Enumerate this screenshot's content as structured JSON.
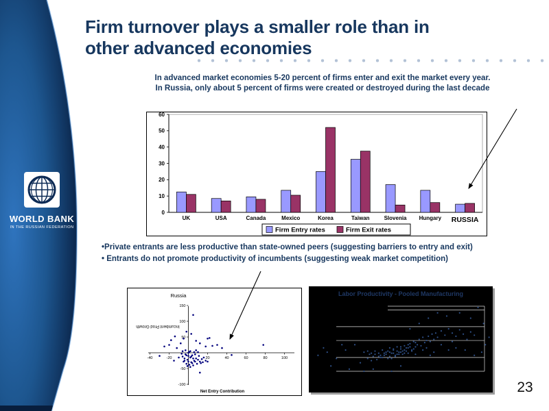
{
  "slide": {
    "page_number": "23"
  },
  "logo": {
    "name": "WORLD BANK",
    "subtitle": "IN THE RUSSIAN FEDERATION"
  },
  "title": {
    "line1": "Firm turnover plays a smaller role than in",
    "line2": "other advanced economies"
  },
  "intro": {
    "line1": "In advanced market economies 5-20 percent of firms enter and exit the market every year.",
    "line2": "In Russia, only about 5 percent of firms were created or destroyed during the last decade"
  },
  "bullets": [
    "•Private entrants are less productive than state-owned peers (suggesting barriers to entry and exit)",
    "• Entrants do not promote productivity of incumbents (suggesting weak market competition)"
  ],
  "colors": {
    "brand_navy": "#17375E",
    "sidebar_light": "#2F74BE",
    "sidebar_dark": "#0C2950",
    "dot": "#B3C2D6"
  },
  "chart_data": [
    {
      "type": "bar",
      "categories": [
        "UK",
        "USA",
        "Canada",
        "Mexico",
        "Korea",
        "Taiwan",
        "Slovenia",
        "Hungary",
        "RUSSIA"
      ],
      "series": [
        {
          "name": "Firm Entry rates",
          "color": "#9999FF",
          "values": [
            12.5,
            8.5,
            9.5,
            13.5,
            25,
            32.5,
            17,
            13.5,
            5
          ]
        },
        {
          "name": "Firm Exit rates",
          "color": "#993366",
          "values": [
            11,
            7,
            8,
            10.5,
            52,
            37.5,
            4.5,
            6,
            5.5
          ]
        }
      ],
      "title": "",
      "xlabel": "",
      "ylabel": "",
      "ylim": [
        0,
        60
      ],
      "yticks": [
        0,
        10,
        20,
        30,
        40,
        50,
        60
      ],
      "grid": false,
      "legend_position": "bottom",
      "annotation_arrow_target": "RUSSIA"
    },
    {
      "type": "scatter",
      "title": "Russia",
      "xlabel": "Net Entry Contribution",
      "ylabel": "Incumbent Prod Growth",
      "ylabel_rotation_deg": 180,
      "xlim": [
        -45,
        105
      ],
      "ylim": [
        -110,
        160
      ],
      "xticks": [
        -40,
        -20,
        20,
        40,
        60,
        80,
        100
      ],
      "yticks": [
        150,
        100,
        50,
        -50,
        -100
      ],
      "marker_color": "#00007D",
      "points": [
        [
          -3,
          -5
        ],
        [
          0,
          -10
        ],
        [
          2,
          -15
        ],
        [
          -1,
          -22
        ],
        [
          4,
          -8
        ],
        [
          1,
          3
        ],
        [
          -4,
          -18
        ],
        [
          6,
          -25
        ],
        [
          3,
          -30
        ],
        [
          -2,
          -35
        ],
        [
          5,
          -40
        ],
        [
          0,
          -28
        ],
        [
          -6,
          -12
        ],
        [
          8,
          -18
        ],
        [
          2,
          5
        ],
        [
          -3,
          8
        ],
        [
          7,
          -5
        ],
        [
          10,
          -22
        ],
        [
          -1,
          -42
        ],
        [
          4,
          -33
        ],
        [
          12,
          -28
        ],
        [
          9,
          -35
        ],
        [
          -5,
          -28
        ],
        [
          0,
          0
        ],
        [
          3,
          -12
        ],
        [
          6,
          2
        ],
        [
          -7,
          -3
        ],
        [
          11,
          -10
        ],
        [
          14,
          -20
        ],
        [
          2,
          -45
        ],
        [
          5,
          -18
        ],
        [
          -2,
          -8
        ],
        [
          8,
          8
        ],
        [
          1,
          -38
        ],
        [
          -4,
          -25
        ],
        [
          13,
          -33
        ],
        [
          10,
          2
        ],
        [
          16,
          -15
        ],
        [
          7,
          -28
        ],
        [
          -6,
          5
        ],
        [
          18,
          -25
        ],
        [
          15,
          -30
        ],
        [
          20,
          -28
        ],
        [
          5,
          120
        ],
        [
          -2,
          67
        ],
        [
          3,
          60
        ],
        [
          -14,
          52
        ],
        [
          -25,
          20
        ],
        [
          22,
          47
        ],
        [
          30,
          25
        ],
        [
          78,
          25
        ],
        [
          8,
          38
        ],
        [
          -5,
          45
        ],
        [
          -8,
          30
        ],
        [
          18,
          20
        ],
        [
          25,
          22
        ],
        [
          35,
          15
        ],
        [
          -18,
          40
        ],
        [
          12,
          30
        ],
        [
          45,
          -7
        ],
        [
          12,
          -63
        ],
        [
          -30,
          -10
        ],
        [
          -12,
          15
        ],
        [
          -10,
          -15
        ],
        [
          -15,
          -25
        ],
        [
          20,
          45
        ],
        [
          -20,
          25
        ]
      ]
    },
    {
      "type": "scatter",
      "title": "Labor Productivity - Pooled Manufacturing",
      "background": "#000000",
      "title_color": "#1F3864",
      "marker_color": "#2E4F86",
      "gridline_color": "#DDDDDD",
      "gridlines_pct": [
        38,
        51,
        67,
        80
      ],
      "points_pct": [
        [
          30,
          62
        ],
        [
          32,
          68
        ],
        [
          33,
          64
        ],
        [
          34,
          70
        ],
        [
          35,
          66
        ],
        [
          36,
          61
        ],
        [
          37,
          69
        ],
        [
          38,
          63
        ],
        [
          39,
          67
        ],
        [
          40,
          60
        ],
        [
          41,
          65
        ],
        [
          42,
          62
        ],
        [
          43,
          68
        ],
        [
          44,
          58
        ],
        [
          45,
          63
        ],
        [
          46,
          60
        ],
        [
          47,
          65
        ],
        [
          48,
          57
        ],
        [
          49,
          62
        ],
        [
          50,
          59
        ],
        [
          51,
          64
        ],
        [
          52,
          56
        ],
        [
          53,
          61
        ],
        [
          54,
          58
        ],
        [
          55,
          54
        ],
        [
          56,
          60
        ],
        [
          57,
          52
        ],
        [
          58,
          57
        ],
        [
          59,
          55
        ],
        [
          60,
          50
        ],
        [
          61,
          56
        ],
        [
          62,
          48
        ],
        [
          63,
          53
        ],
        [
          64,
          51
        ],
        [
          65,
          47
        ],
        [
          66,
          52
        ],
        [
          67,
          45
        ],
        [
          68,
          50
        ],
        [
          69,
          44
        ],
        [
          70,
          48
        ],
        [
          72,
          42
        ],
        [
          74,
          46
        ],
        [
          76,
          40
        ],
        [
          78,
          44
        ],
        [
          80,
          47
        ],
        [
          82,
          41
        ],
        [
          84,
          45
        ],
        [
          86,
          50
        ],
        [
          88,
          43
        ],
        [
          90,
          46
        ],
        [
          42,
          64
        ],
        [
          44,
          66
        ],
        [
          46,
          63
        ],
        [
          48,
          61
        ],
        [
          50,
          62
        ],
        [
          52,
          60
        ],
        [
          54,
          63
        ],
        [
          45,
          68
        ],
        [
          47,
          66
        ],
        [
          49,
          64
        ],
        [
          51,
          61
        ],
        [
          53,
          58
        ],
        [
          43,
          61
        ],
        [
          41,
          63
        ],
        [
          39,
          65
        ],
        [
          55,
          57
        ],
        [
          57,
          59
        ],
        [
          40,
          67
        ],
        [
          44,
          62
        ],
        [
          48,
          64
        ],
        [
          52,
          63
        ],
        [
          56,
          61
        ],
        [
          46,
          59
        ],
        [
          50,
          57
        ],
        [
          54,
          55
        ],
        [
          58,
          53
        ],
        [
          36,
          64
        ],
        [
          38,
          66
        ],
        [
          34,
          63
        ],
        [
          32,
          61
        ],
        [
          25,
          55
        ],
        [
          20,
          60
        ],
        [
          15,
          68
        ],
        [
          10,
          62
        ],
        [
          12,
          75
        ],
        [
          28,
          72
        ],
        [
          65,
          30
        ],
        [
          70,
          25
        ],
        [
          92,
          20
        ],
        [
          95,
          35
        ],
        [
          85,
          60
        ],
        [
          90,
          65
        ],
        [
          96,
          55
        ],
        [
          60,
          35
        ],
        [
          75,
          28
        ],
        [
          55,
          40
        ],
        [
          35,
          78
        ],
        [
          45,
          80
        ],
        [
          50,
          75
        ],
        [
          30,
          80
        ],
        [
          22,
          78
        ],
        [
          18,
          55
        ],
        [
          8,
          58
        ],
        [
          5,
          65
        ],
        [
          98,
          48
        ],
        [
          94,
          62
        ],
        [
          88,
          30
        ],
        [
          82,
          25
        ],
        [
          76,
          60
        ],
        [
          72,
          55
        ],
        [
          68,
          62
        ],
        [
          64,
          58
        ],
        [
          66,
          65
        ],
        [
          62,
          60
        ],
        [
          58,
          64
        ],
        [
          78,
          52
        ],
        [
          80,
          58
        ]
      ]
    }
  ]
}
